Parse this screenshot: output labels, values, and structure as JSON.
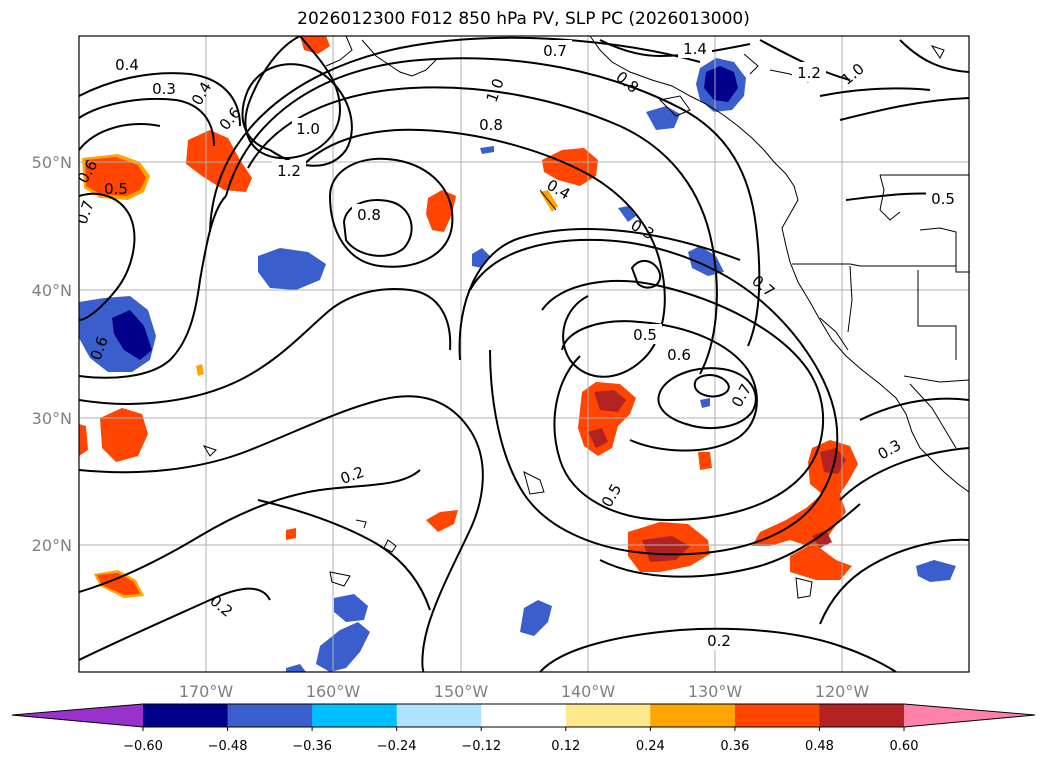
{
  "title": "2026012300 F012 850 hPa PV, SLP PC (2026013000)",
  "map": {
    "lat_labels": [
      "50°N",
      "40°N",
      "30°N",
      "20°N"
    ],
    "lon_labels": [
      "170°W",
      "160°W",
      "150°W",
      "140°W",
      "130°W",
      "120°W"
    ],
    "contour_labels": [
      {
        "text": "0.4"
      },
      {
        "text": "0.3"
      },
      {
        "text": "0.4"
      },
      {
        "text": "0.6"
      },
      {
        "text": "1.0"
      },
      {
        "text": "1.2"
      },
      {
        "text": "0.8"
      },
      {
        "text": "0.6"
      },
      {
        "text": "0.5"
      },
      {
        "text": "0.7"
      },
      {
        "text": "1.0"
      },
      {
        "text": "0.8"
      },
      {
        "text": "0.7"
      },
      {
        "text": "1.4"
      },
      {
        "text": "0.8"
      },
      {
        "text": "1.2"
      },
      {
        "text": "1.0"
      },
      {
        "text": "0.4"
      },
      {
        "text": "0.3"
      },
      {
        "text": "0.5"
      },
      {
        "text": "0.7"
      },
      {
        "text": "0.5"
      },
      {
        "text": "0.6"
      },
      {
        "text": "0.7"
      },
      {
        "text": "0.6"
      },
      {
        "text": "0.2"
      },
      {
        "text": "0.5"
      },
      {
        "text": "0.3"
      },
      {
        "text": "0.2"
      },
      {
        "text": "0.2"
      }
    ]
  },
  "colorbar": {
    "colors": [
      "#9932cc",
      "#00008b",
      "#3a5fcd",
      "#00bfff",
      "#b0e2ff",
      "#ffffff",
      "#ffe88c",
      "#ffa500",
      "#ff4500",
      "#b22222",
      "#ff82ab"
    ],
    "ticks": [
      "−0.60",
      "−0.48",
      "−0.36",
      "−0.24",
      "−0.12",
      "0.12",
      "0.24",
      "0.36",
      "0.48",
      "0.60"
    ]
  },
  "colors": {
    "strong_positive": "#b22222",
    "positive": "#ff4500",
    "weak_positive": "#ffa500",
    "negative": "#3a5fcd",
    "strong_negative": "#00008b",
    "weak_negative": "#00bfff"
  }
}
